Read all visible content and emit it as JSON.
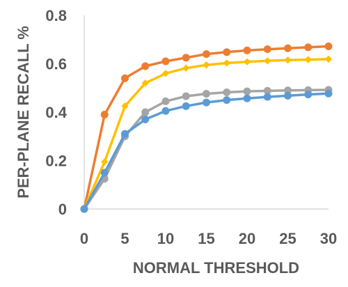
{
  "chart_data": {
    "type": "line",
    "title": "",
    "xlabel": "NORMAL THRESHOLD",
    "ylabel": "PER-PLANE RECALL %",
    "xlim": [
      0,
      30
    ],
    "ylim": [
      0,
      0.8
    ],
    "x_ticks": [
      "0",
      "5",
      "10",
      "15",
      "20",
      "25",
      "30"
    ],
    "y_ticks": [
      "0",
      "0.2",
      "0.4",
      "0.6",
      "0.8"
    ],
    "grid": false,
    "legend": "none",
    "x": [
      0,
      2.5,
      5,
      7.5,
      10,
      12.5,
      15,
      17.5,
      20,
      22.5,
      25,
      27.5,
      30
    ],
    "series": [
      {
        "color": "#ED7D31",
        "marker": "circle",
        "values": [
          0,
          0.39,
          0.54,
          0.59,
          0.61,
          0.625,
          0.64,
          0.648,
          0.655,
          0.66,
          0.664,
          0.668,
          0.672
        ]
      },
      {
        "color": "#FFC000",
        "marker": "diamond",
        "values": [
          0,
          0.195,
          0.425,
          0.52,
          0.56,
          0.582,
          0.595,
          0.603,
          0.608,
          0.612,
          0.615,
          0.617,
          0.619
        ]
      },
      {
        "color": "#A5A5A5",
        "marker": "circle",
        "values": [
          0,
          0.125,
          0.3,
          0.4,
          0.445,
          0.466,
          0.476,
          0.482,
          0.486,
          0.488,
          0.49,
          0.491,
          0.492
        ]
      },
      {
        "color": "#5B9BD5",
        "marker": "circle",
        "values": [
          0,
          0.15,
          0.31,
          0.37,
          0.405,
          0.425,
          0.44,
          0.45,
          0.457,
          0.463,
          0.468,
          0.473,
          0.477
        ]
      }
    ]
  }
}
